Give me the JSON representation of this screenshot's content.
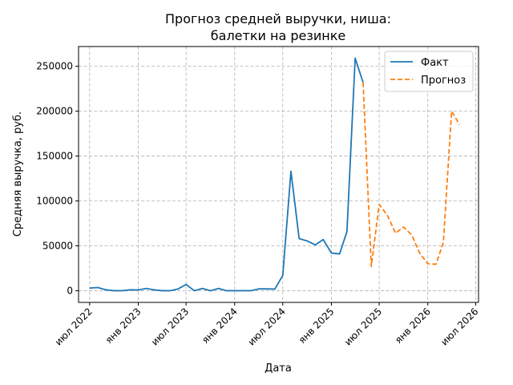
{
  "chart_data": {
    "type": "line",
    "title": [
      "Прогноз средней выручки, ниша:",
      "балетки на резинке"
    ],
    "xlabel": "Дата",
    "ylabel": "Средняя выручка, руб.",
    "xlim": [
      "2022-05-20",
      "2026-07-12"
    ],
    "ylim": [
      -13000,
      272000
    ],
    "x_ticks": [
      {
        "date": "2022-07-01",
        "label": "июл 2022"
      },
      {
        "date": "2023-01-01",
        "label": "янв 2023"
      },
      {
        "date": "2023-07-01",
        "label": "июл 2023"
      },
      {
        "date": "2024-01-01",
        "label": "янв 2024"
      },
      {
        "date": "2024-07-01",
        "label": "июл 2024"
      },
      {
        "date": "2025-01-01",
        "label": "янв 2025"
      },
      {
        "date": "2025-07-01",
        "label": "июл 2025"
      },
      {
        "date": "2026-01-01",
        "label": "янв 2026"
      },
      {
        "date": "2026-07-01",
        "label": "июл 2026"
      }
    ],
    "y_ticks": [
      0,
      50000,
      100000,
      150000,
      200000,
      250000
    ],
    "grid": true,
    "legend_position": "top-right",
    "series": [
      {
        "name": "Факт",
        "color": "#1f77b4",
        "dash": "solid",
        "points": [
          {
            "x": "2022-07-01",
            "y": 3000
          },
          {
            "x": "2022-08-01",
            "y": 3500
          },
          {
            "x": "2022-09-01",
            "y": 1000
          },
          {
            "x": "2022-10-01",
            "y": 0
          },
          {
            "x": "2022-11-01",
            "y": 0
          },
          {
            "x": "2022-12-01",
            "y": 1000
          },
          {
            "x": "2023-01-01",
            "y": 800
          },
          {
            "x": "2023-02-01",
            "y": 2500
          },
          {
            "x": "2023-03-01",
            "y": 1000
          },
          {
            "x": "2023-04-01",
            "y": 0
          },
          {
            "x": "2023-05-01",
            "y": 0
          },
          {
            "x": "2023-06-01",
            "y": 2000
          },
          {
            "x": "2023-07-01",
            "y": 7000
          },
          {
            "x": "2023-08-01",
            "y": 0
          },
          {
            "x": "2023-09-01",
            "y": 2500
          },
          {
            "x": "2023-10-01",
            "y": 0
          },
          {
            "x": "2023-11-01",
            "y": 2500
          },
          {
            "x": "2023-12-01",
            "y": 0
          },
          {
            "x": "2024-01-01",
            "y": 0
          },
          {
            "x": "2024-02-01",
            "y": 0
          },
          {
            "x": "2024-03-01",
            "y": 0
          },
          {
            "x": "2024-04-01",
            "y": 2000
          },
          {
            "x": "2024-05-01",
            "y": 2000
          },
          {
            "x": "2024-06-01",
            "y": 1800
          },
          {
            "x": "2024-07-01",
            "y": 17000
          },
          {
            "x": "2024-08-01",
            "y": 133000
          },
          {
            "x": "2024-09-01",
            "y": 58000
          },
          {
            "x": "2024-10-01",
            "y": 55500
          },
          {
            "x": "2024-11-01",
            "y": 51000
          },
          {
            "x": "2024-12-01",
            "y": 57000
          },
          {
            "x": "2025-01-01",
            "y": 42000
          },
          {
            "x": "2025-02-01",
            "y": 41000
          },
          {
            "x": "2025-03-01",
            "y": 66000
          },
          {
            "x": "2025-04-01",
            "y": 259000
          },
          {
            "x": "2025-05-01",
            "y": 232000
          }
        ]
      },
      {
        "name": "Прогноз",
        "color": "#ff7f0e",
        "dash": "dashed",
        "points": [
          {
            "x": "2025-05-01",
            "y": 232000
          },
          {
            "x": "2025-06-01",
            "y": 27000
          },
          {
            "x": "2025-07-01",
            "y": 96000
          },
          {
            "x": "2025-08-01",
            "y": 84000
          },
          {
            "x": "2025-09-01",
            "y": 64000
          },
          {
            "x": "2025-10-01",
            "y": 71000
          },
          {
            "x": "2025-11-01",
            "y": 62000
          },
          {
            "x": "2025-12-01",
            "y": 42000
          },
          {
            "x": "2026-01-01",
            "y": 30000
          },
          {
            "x": "2026-02-01",
            "y": 29500
          },
          {
            "x": "2026-03-01",
            "y": 54000
          },
          {
            "x": "2026-04-01",
            "y": 200000
          },
          {
            "x": "2026-05-01",
            "y": 185000
          }
        ]
      }
    ]
  }
}
